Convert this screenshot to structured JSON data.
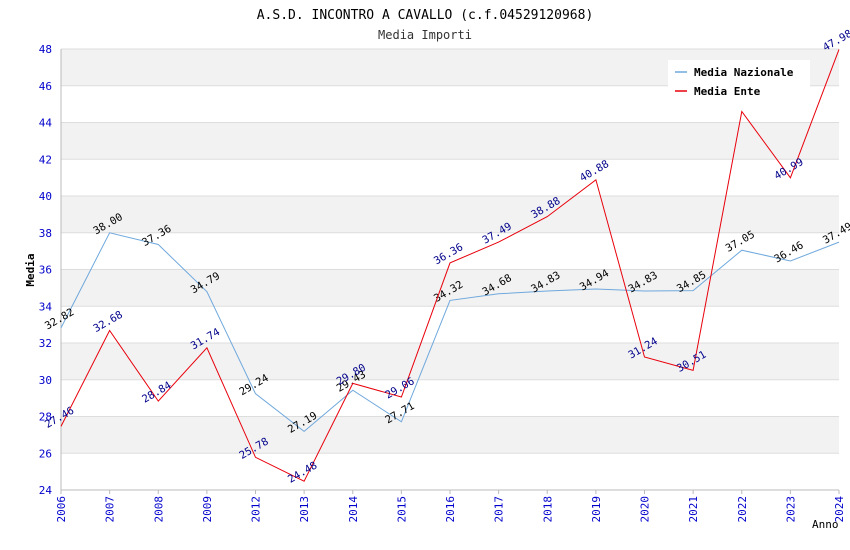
{
  "chart_data": {
    "type": "line",
    "title": "A.S.D. INCONTRO A CAVALLO (c.f.04529120968)",
    "subtitle": "Media Importi",
    "xlabel": "Anno",
    "ylabel": "Media",
    "ylim": [
      24,
      48
    ],
    "yticks": [
      "24",
      "26",
      "28",
      "30",
      "32",
      "34",
      "36",
      "38",
      "40",
      "42",
      "44",
      "46",
      "48"
    ],
    "categories": [
      "2006",
      "2007",
      "2008",
      "2009",
      "2012",
      "2013",
      "2014",
      "2015",
      "2016",
      "2017",
      "2018",
      "2019",
      "2020",
      "2021",
      "2022",
      "2023",
      "2024"
    ],
    "legend_position": "top-right",
    "series": [
      {
        "name": "Media Nazionale",
        "color": "#6fa8dc",
        "label_color": "#000000",
        "values": [
          32.82,
          38.0,
          37.36,
          34.79,
          29.24,
          27.19,
          29.43,
          27.71,
          34.32,
          34.68,
          34.83,
          34.94,
          34.83,
          34.85,
          37.05,
          36.46,
          37.49
        ],
        "labels": [
          "32.82",
          "38.00",
          "37.36",
          "34.79",
          "29.24",
          "27.19",
          "29.43",
          "27.71",
          "34.32",
          "34.68",
          "34.83",
          "34.94",
          "34.83",
          "34.85",
          "37.05",
          "36.46",
          "37.49"
        ]
      },
      {
        "name": "Media Ente",
        "color": "#e8000b",
        "label_color": "#00008b",
        "values": [
          27.46,
          32.68,
          28.84,
          31.74,
          25.78,
          24.48,
          29.8,
          29.06,
          36.36,
          37.49,
          38.88,
          40.88,
          31.24,
          30.51,
          44.6,
          40.99,
          47.98
        ],
        "labels": [
          "27.46",
          "32.68",
          "28.84",
          "31.74",
          "25.78",
          "24.48",
          "29.80",
          "29.06",
          "36.36",
          "37.49",
          "38.88",
          "40.88",
          "31.24",
          "30.51",
          "",
          "40.99",
          "47.98"
        ]
      }
    ],
    "colors": {
      "band": "#f2f2f2",
      "grid": "#dddddd",
      "axis": "#bbbbbb",
      "tick_label": "#0000cc",
      "title": "#000000",
      "subtitle": "#333333"
    }
  }
}
